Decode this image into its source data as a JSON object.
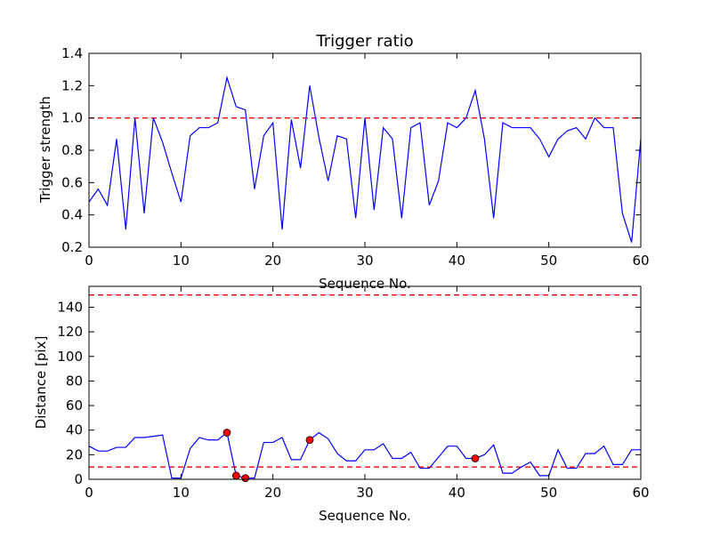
{
  "chart_data": [
    {
      "type": "line",
      "title": "Trigger ratio",
      "xlabel": "Sequence No.",
      "ylabel": "Trigger strength",
      "xlim": [
        0,
        60
      ],
      "ylim": [
        0.2,
        1.4
      ],
      "xticks": [
        "0",
        "10",
        "20",
        "30",
        "40",
        "50",
        "60"
      ],
      "yticks": [
        "0.2",
        "0.4",
        "0.6",
        "0.8",
        "1.0",
        "1.2",
        "1.4"
      ],
      "grid": false,
      "threshold_lines": [
        1.0
      ],
      "series": [
        {
          "color": "#0000ff",
          "x": [
            0,
            1,
            2,
            3,
            4,
            5,
            6,
            7,
            8,
            9,
            10,
            11,
            12,
            13,
            14,
            15,
            16,
            17,
            18,
            19,
            20,
            21,
            22,
            23,
            24,
            25,
            26,
            27,
            28,
            29,
            30,
            31,
            32,
            33,
            34,
            35,
            36,
            37,
            38,
            39,
            40,
            41,
            42,
            43,
            44,
            45,
            46,
            47,
            48,
            49,
            50,
            51,
            52,
            53,
            54,
            55,
            56,
            57,
            58,
            59,
            60
          ],
          "values": [
            0.48,
            0.56,
            0.46,
            0.87,
            0.31,
            1.0,
            0.41,
            1.0,
            0.85,
            0.66,
            0.48,
            0.89,
            0.94,
            0.94,
            0.97,
            1.25,
            1.07,
            1.05,
            0.56,
            0.89,
            0.97,
            0.31,
            0.99,
            0.69,
            1.2,
            0.88,
            0.61,
            0.89,
            0.87,
            0.38,
            1.0,
            0.43,
            0.94,
            0.87,
            0.38,
            0.94,
            0.97,
            0.46,
            0.61,
            0.97,
            0.94,
            1.0,
            1.17,
            0.87,
            0.38,
            0.97,
            0.94,
            0.94,
            0.94,
            0.87,
            0.76,
            0.87,
            0.92,
            0.94,
            0.87,
            1.0,
            0.94,
            0.94,
            0.41,
            0.23,
            0.87
          ]
        }
      ]
    },
    {
      "type": "line",
      "title": "",
      "xlabel": "Sequence No.",
      "ylabel": "Distance [pix]",
      "xlim": [
        0,
        60
      ],
      "ylim": [
        0,
        157
      ],
      "xticks": [
        "0",
        "10",
        "20",
        "30",
        "40",
        "50",
        "60"
      ],
      "yticks": [
        "0",
        "20",
        "40",
        "60",
        "80",
        "100",
        "120",
        "140"
      ],
      "grid": false,
      "threshold_lines": [
        10,
        150
      ],
      "series": [
        {
          "color": "#0000ff",
          "x": [
            0,
            1,
            2,
            3,
            4,
            5,
            6,
            7,
            8,
            9,
            10,
            11,
            12,
            13,
            14,
            15,
            16,
            17,
            18,
            19,
            20,
            21,
            22,
            23,
            24,
            25,
            26,
            27,
            28,
            29,
            30,
            31,
            32,
            33,
            34,
            35,
            36,
            37,
            38,
            39,
            40,
            41,
            42,
            43,
            44,
            45,
            46,
            47,
            48,
            49,
            50,
            51,
            52,
            53,
            54,
            55,
            56,
            57,
            58,
            59,
            60
          ],
          "values": [
            27,
            23,
            23,
            26,
            26,
            34,
            34,
            35,
            36,
            1,
            1,
            25,
            34,
            32,
            32,
            38,
            3,
            1,
            1,
            30,
            30,
            34,
            16,
            16,
            32,
            38,
            33,
            21,
            15,
            15,
            24,
            24,
            29,
            17,
            17,
            22,
            9,
            9,
            18,
            27,
            27,
            17,
            17,
            20,
            28,
            5,
            5,
            10,
            14,
            3,
            3,
            24,
            9,
            9,
            21,
            21,
            27,
            12,
            12,
            24,
            24
          ]
        }
      ],
      "markers": {
        "color": "#ff0000",
        "x": [
          15,
          16,
          17,
          24,
          42
        ],
        "values": [
          38,
          3,
          1,
          32,
          17
        ]
      }
    }
  ],
  "colors": {
    "line": "#0000ff",
    "threshold": "#ff0000",
    "marker": "#ff0000"
  }
}
